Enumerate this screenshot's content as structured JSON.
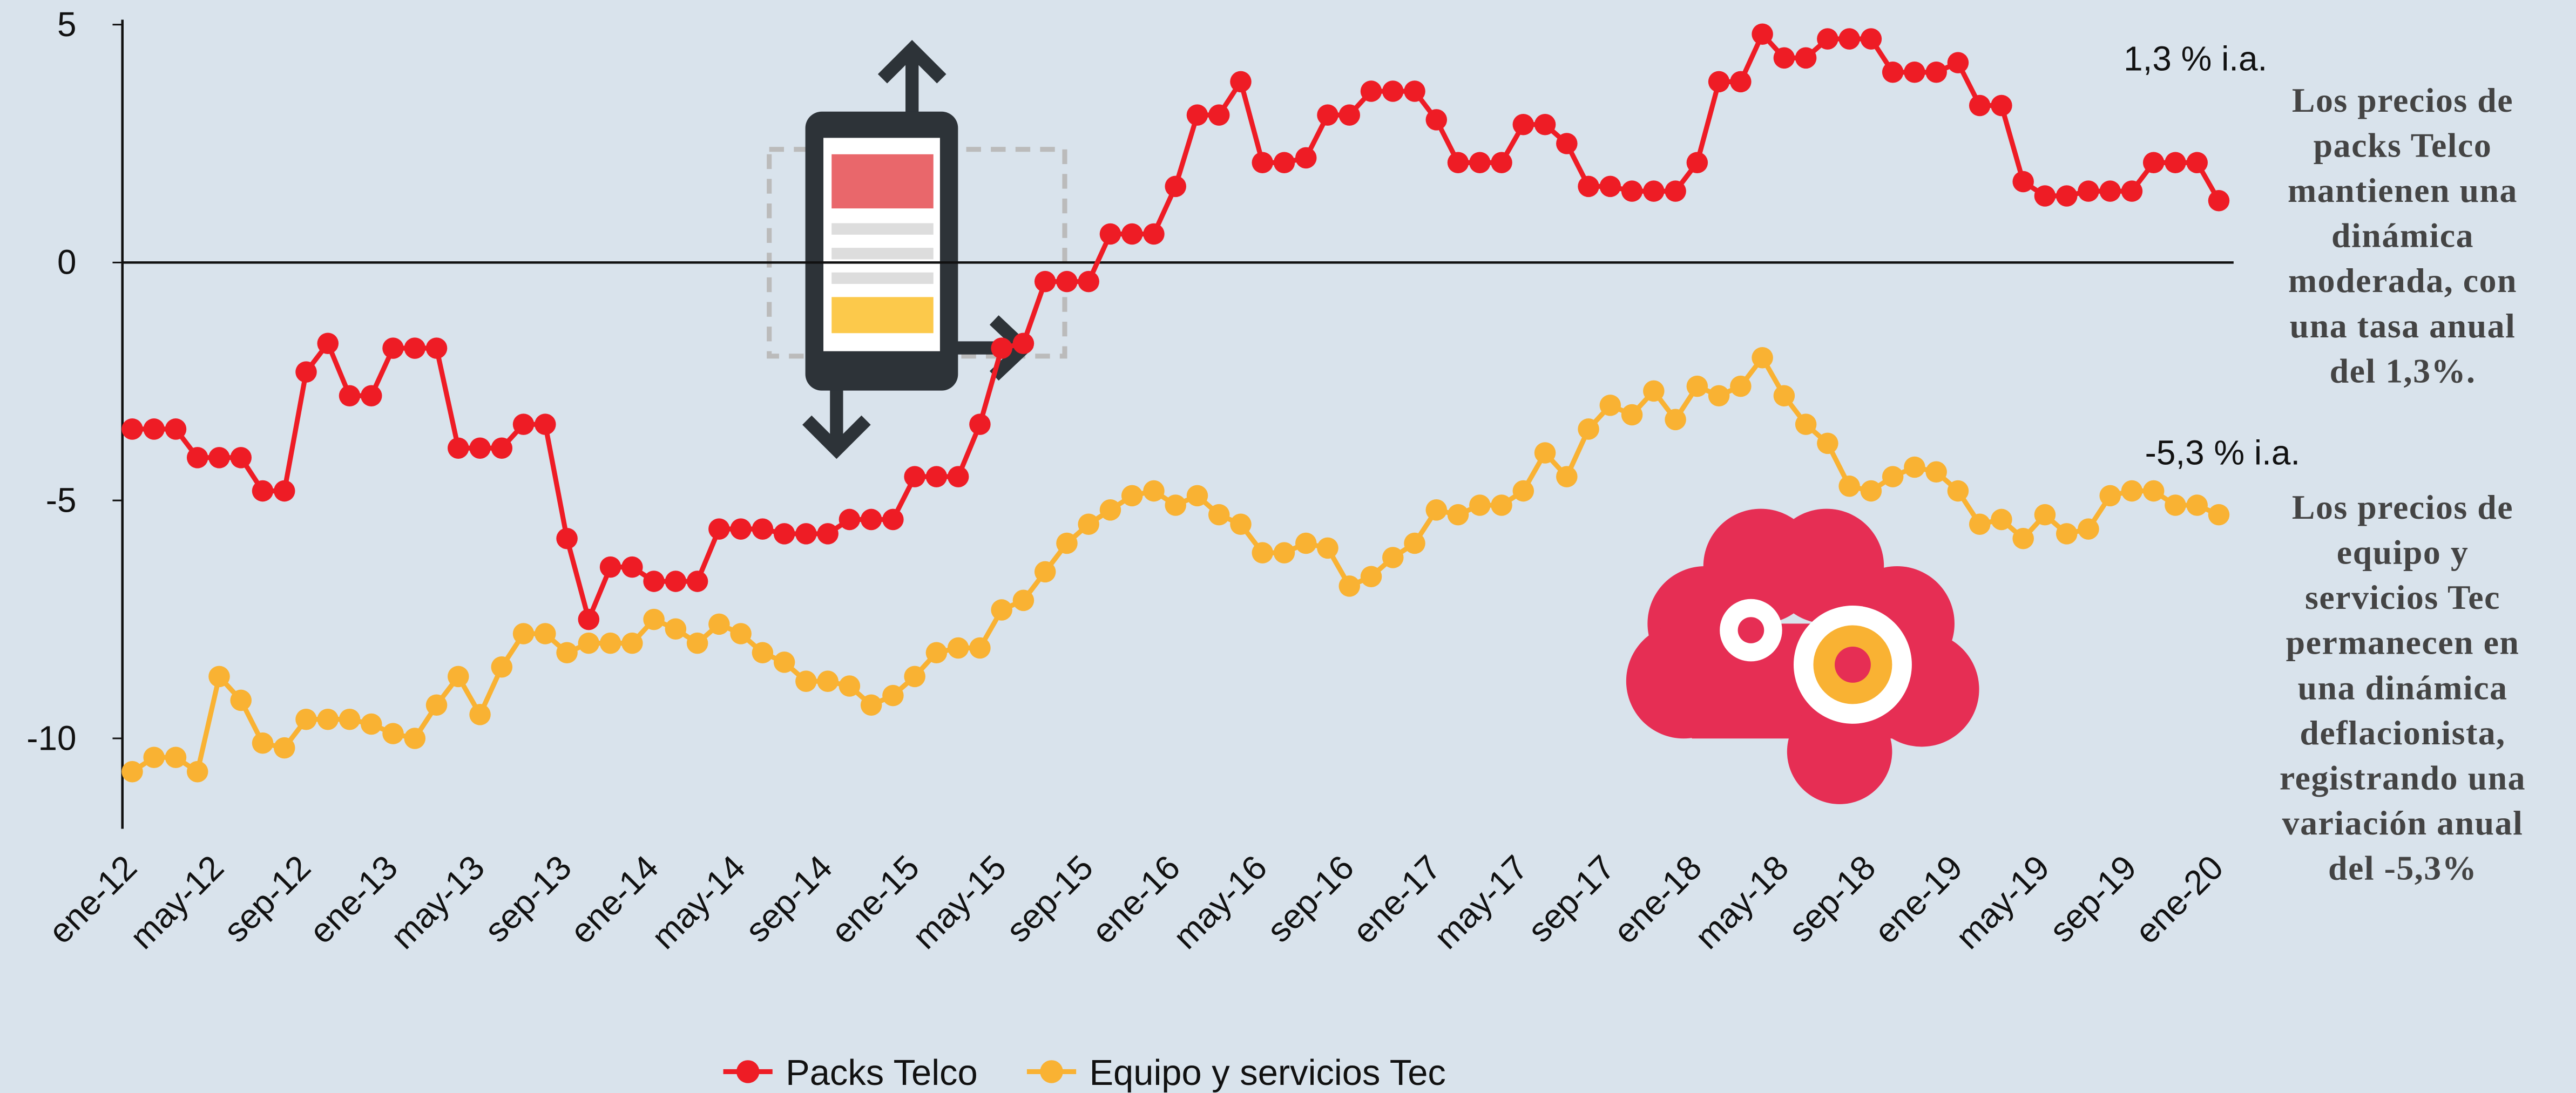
{
  "chart_data": {
    "type": "line",
    "categories": [
      "ene-12",
      null,
      null,
      null,
      "may-12",
      null,
      null,
      null,
      "sep-12",
      null,
      null,
      null,
      "ene-13",
      null,
      null,
      null,
      "may-13",
      null,
      null,
      null,
      "sep-13",
      null,
      null,
      null,
      "ene-14",
      null,
      null,
      null,
      "may-14",
      null,
      null,
      null,
      "sep-14",
      null,
      null,
      null,
      "ene-15",
      null,
      null,
      null,
      "may-15",
      null,
      null,
      null,
      "sep-15",
      null,
      null,
      null,
      "ene-16",
      null,
      null,
      null,
      "may-16",
      null,
      null,
      null,
      "sep-16",
      null,
      null,
      null,
      "ene-17",
      null,
      null,
      null,
      "may-17",
      null,
      null,
      null,
      "sep-17",
      null,
      null,
      null,
      "ene-18",
      null,
      null,
      null,
      "may-18",
      null,
      null,
      null,
      "sep-18",
      null,
      null,
      null,
      "ene-19",
      null,
      null,
      null,
      "may-19",
      null,
      null,
      null,
      "sep-19",
      null,
      null,
      null,
      "ene-20"
    ],
    "series": [
      {
        "name": "Packs Telco",
        "color": "#ee1c25",
        "values": [
          -3.5,
          -3.5,
          -3.5,
          -4.1,
          -4.1,
          -4.1,
          -4.8,
          -4.8,
          -2.3,
          -1.7,
          -2.8,
          -2.8,
          -1.8,
          -1.8,
          -1.8,
          -3.9,
          -3.9,
          -3.9,
          -3.4,
          -3.4,
          -5.8,
          -7.5,
          -6.4,
          -6.4,
          -6.7,
          -6.7,
          -6.7,
          -5.6,
          -5.6,
          -5.6,
          -5.7,
          -5.7,
          -5.7,
          -5.4,
          -5.4,
          -5.4,
          -4.5,
          -4.5,
          -4.5,
          -3.4,
          -1.8,
          -1.7,
          -0.4,
          -0.4,
          -0.4,
          0.6,
          0.6,
          0.6,
          1.6,
          3.1,
          3.1,
          3.8,
          2.1,
          2.1,
          2.2,
          3.1,
          3.1,
          3.6,
          3.6,
          3.6,
          3.0,
          2.1,
          2.1,
          2.1,
          2.9,
          2.9,
          2.5,
          1.6,
          1.6,
          1.5,
          1.5,
          1.5,
          2.1,
          3.8,
          3.8,
          4.8,
          4.3,
          4.3,
          4.7,
          4.7,
          4.7,
          4.0,
          4.0,
          4.0,
          4.2,
          3.3,
          3.3,
          1.7,
          1.4,
          1.4,
          1.5,
          1.5,
          1.5,
          2.1,
          2.1,
          2.1,
          1.3
        ]
      },
      {
        "name": "Equipo y servicios Tec",
        "color": "#f9b233",
        "values": [
          -10.7,
          -10.4,
          -10.4,
          -10.7,
          -8.7,
          -9.2,
          -10.1,
          -10.2,
          -9.6,
          -9.6,
          -9.6,
          -9.7,
          -9.9,
          -10.0,
          -9.3,
          -8.7,
          -9.5,
          -8.5,
          -7.8,
          -7.8,
          -8.2,
          -8.0,
          -8.0,
          -8.0,
          -7.5,
          -7.7,
          -8.0,
          -7.6,
          -7.8,
          -8.2,
          -8.4,
          -8.8,
          -8.8,
          -8.9,
          -9.3,
          -9.1,
          -8.7,
          -8.2,
          -8.1,
          -8.1,
          -7.3,
          -7.1,
          -6.5,
          -5.9,
          -5.5,
          -5.2,
          -4.9,
          -4.8,
          -5.1,
          -4.9,
          -5.3,
          -5.5,
          -6.1,
          -6.1,
          -5.9,
          -6.0,
          -6.8,
          -6.6,
          -6.2,
          -5.9,
          -5.2,
          -5.3,
          -5.1,
          -5.1,
          -4.8,
          -4.0,
          -4.5,
          -3.5,
          -3.0,
          -3.2,
          -2.7,
          -3.3,
          -2.6,
          -2.8,
          -2.6,
          -2.0,
          -2.8,
          -3.4,
          -3.8,
          -4.7,
          -4.8,
          -4.5,
          -4.3,
          -4.4,
          -4.8,
          -5.5,
          -5.4,
          -5.8,
          -5.3,
          -5.7,
          -5.6,
          -4.9,
          -4.8,
          -4.8,
          -5.1,
          -5.1,
          -5.3
        ]
      }
    ],
    "ylim": [
      -11.9,
      5
    ],
    "yticks": [
      5,
      0,
      -5,
      -10
    ],
    "annotations": [
      {
        "label": "1,3 % i.a.",
        "lines": [
          "Los precios de",
          "packs Telco",
          "mantienen una",
          "dinámica",
          "moderada, con",
          "una tasa anual",
          "del 1,3%."
        ]
      },
      {
        "label": "-5,3 % i.a.",
        "lines": [
          "Los precios de",
          "equipo y",
          "servicios Tec",
          "permanecen en",
          "una dinámica",
          "deflacionista,",
          "registrando una",
          "variación anual",
          "del -5,3%"
        ]
      }
    ],
    "legend": "bottom"
  }
}
